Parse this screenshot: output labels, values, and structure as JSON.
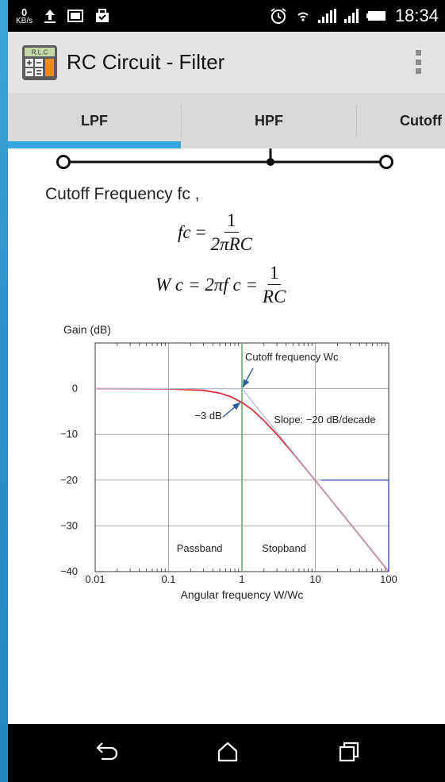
{
  "status_bar": {
    "speed_value": "0",
    "speed_unit": "KB/s",
    "time": "18:34",
    "icons": [
      "upload-icon",
      "gallery-icon",
      "briefcase-icon",
      "alarm-icon",
      "wifi-icon",
      "signal-icon",
      "signal-icon",
      "battery-icon"
    ]
  },
  "action_bar": {
    "app_icon_label": "R.L.C",
    "title": "RC Circuit - Filter"
  },
  "tabs": [
    {
      "label": "LPF",
      "selected": true
    },
    {
      "label": "HPF",
      "selected": false
    },
    {
      "label": "Cutoff",
      "selected": false
    }
  ],
  "content": {
    "description": "Cutoff Frequency fc ,",
    "formula1": {
      "lhs": "fc",
      "eq": "=",
      "num": "1",
      "den": "2πRC"
    },
    "formula2": {
      "lhs": "W c",
      "mid": "= 2πf c =",
      "num": "1",
      "den": "RC"
    }
  },
  "chart_data": {
    "type": "line",
    "ylabel": "Gain (dB)",
    "xlabel": "Angular frequency W/Wc",
    "x_scale": "log",
    "xlim": [
      0.01,
      100
    ],
    "ylim": [
      -40,
      10
    ],
    "x_ticks": [
      "0.01",
      "0.1",
      "1",
      "10",
      "100"
    ],
    "y_ticks": [
      "0",
      "-10",
      "-20",
      "-30",
      "-40"
    ],
    "grid": true,
    "series": [
      {
        "color": "#e0303c",
        "x": [
          0.01,
          0.1,
          0.3,
          0.5,
          0.7,
          1,
          1.4,
          2,
          3,
          5,
          10,
          20,
          50,
          100
        ],
        "y": [
          0,
          -0.04,
          -0.37,
          -0.97,
          -1.74,
          -3.01,
          -4.67,
          -6.99,
          -10,
          -14.15,
          -20.04,
          -26.03,
          -33.98,
          -40
        ]
      },
      {
        "color": "#a9b7dc",
        "x": [
          0.01,
          1,
          100
        ],
        "y": [
          0,
          0,
          -40
        ]
      }
    ],
    "annotations": [
      {
        "text": "Cutoff frequency Wc",
        "x": 1,
        "y": 0
      },
      {
        "text": "-3 dB",
        "x": 1,
        "y": -3
      },
      {
        "text": "Slope: -20 dB/decade",
        "x": 3.5,
        "y": -6
      },
      {
        "text": "Passband",
        "x": 0.3,
        "y": -35
      },
      {
        "text": "Stopband",
        "x": 3,
        "y": -35
      }
    ],
    "cutoff_line_color": "#44bb44",
    "slope_marker": {
      "color": "#2233aa",
      "x": [
        12,
        100
      ],
      "y": [
        -20,
        -40
      ]
    }
  }
}
